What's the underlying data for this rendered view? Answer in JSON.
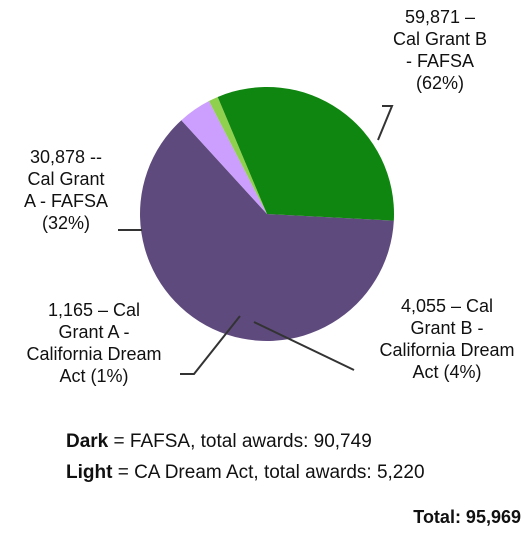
{
  "chart_data": {
    "type": "pie",
    "slices": [
      {
        "value": 59871,
        "percent": 62,
        "color": "#5f4a7e",
        "label_lines": [
          "59,871 –",
          "Cal Grant B",
          "- FAFSA",
          "(62%)"
        ]
      },
      {
        "value": 4055,
        "percent": 4,
        "color": "#cc9fff",
        "label_lines": [
          "4,055 – Cal",
          "Grant B -",
          "California Dream",
          "Act (4%)"
        ]
      },
      {
        "value": 1165,
        "percent": 1,
        "color": "#8fd14f",
        "label_lines": [
          "1,165 – Cal",
          "Grant A -",
          "California Dream",
          "Act (1%)"
        ]
      },
      {
        "value": 30878,
        "percent": 32,
        "color": "#0f860f",
        "label_lines": [
          "30,878 --",
          "Cal Grant",
          "A - FAFSA",
          "(32%)"
        ]
      }
    ],
    "legend": {
      "dark_key": "Dark",
      "dark_text": " = FAFSA, total awards: 90,749",
      "light_key": "Light",
      "light_text": " = CA Dream Act, total awards: 5,220"
    },
    "total": "Total: 95,969"
  }
}
